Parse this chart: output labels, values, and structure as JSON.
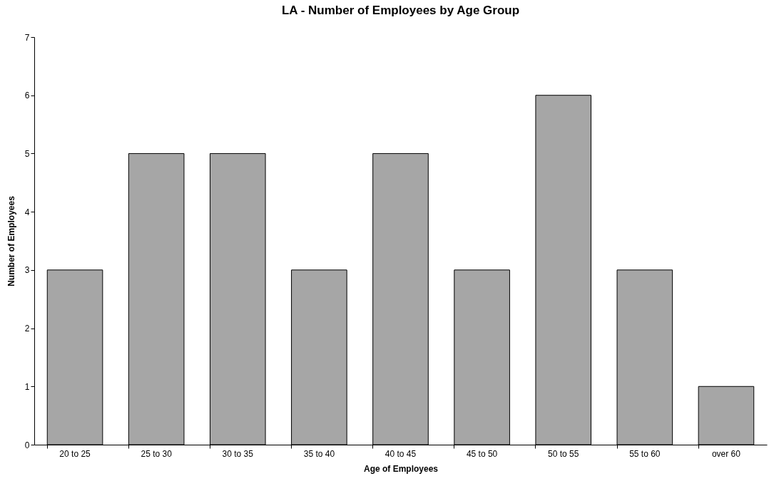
{
  "chart_data": {
    "type": "bar",
    "title": "LA - Number of Employees by Age Group",
    "xlabel": "Age of Employees",
    "ylabel": "Number of Employees",
    "categories": [
      "20 to 25",
      "25 to 30",
      "30 to 35",
      "35 to 40",
      "40 to 45",
      "45 to 50",
      "50 to 55",
      "55 to 60",
      "over 60"
    ],
    "values": [
      3,
      5,
      5,
      3,
      5,
      3,
      6,
      3,
      1
    ],
    "color": "#a6a6a6",
    "ylim": [
      0,
      7
    ],
    "yticks": [
      0,
      1,
      2,
      3,
      4,
      5,
      6,
      7
    ],
    "grid": false
  }
}
